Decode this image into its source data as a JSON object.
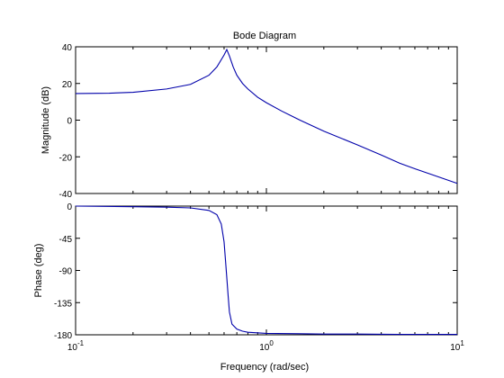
{
  "chart_data": {
    "type": "line",
    "title": "Bode Diagram",
    "xlabel": "Frequency  (rad/sec)",
    "x_scale": "log",
    "xlim": [
      0.1,
      10
    ],
    "x_ticks": [
      0.1,
      1,
      10
    ],
    "x_tick_labels": [
      {
        "base": "10",
        "exp": "-1"
      },
      {
        "base": "10",
        "exp": "0"
      },
      {
        "base": "10",
        "exp": "1"
      }
    ],
    "series_color": "#0000aa",
    "panels": [
      {
        "id": "magnitude",
        "ylabel": "Magnitude (dB)",
        "ylim": [
          -40,
          40
        ],
        "y_ticks": [
          40,
          20,
          0,
          -20,
          -40
        ],
        "y_tick_labels": [
          "40",
          "20",
          "0",
          "-20",
          "-40"
        ],
        "x": [
          0.1,
          0.15,
          0.2,
          0.3,
          0.4,
          0.5,
          0.55,
          0.6,
          0.62,
          0.64,
          0.67,
          0.7,
          0.75,
          0.8,
          0.9,
          1,
          1.2,
          1.5,
          2,
          3,
          4,
          5,
          6,
          8,
          10
        ],
        "y": [
          14.5,
          14.7,
          15.2,
          17,
          19.5,
          24.5,
          29,
          35.5,
          38.5,
          35,
          29,
          24.5,
          20,
          17,
          12.5,
          9.5,
          5,
          0,
          -6,
          -13.5,
          -19,
          -23.5,
          -26.5,
          -31,
          -34.5
        ]
      },
      {
        "id": "phase",
        "ylabel": "Phase (deg)",
        "ylim": [
          -180,
          0
        ],
        "y_ticks": [
          0,
          -45,
          -90,
          -135,
          -180
        ],
        "y_tick_labels": [
          "0",
          "-45",
          "-90",
          "-135",
          "-180"
        ],
        "x": [
          0.1,
          0.2,
          0.3,
          0.4,
          0.5,
          0.55,
          0.58,
          0.6,
          0.61,
          0.62,
          0.63,
          0.64,
          0.66,
          0.7,
          0.75,
          0.8,
          1,
          1.5,
          2,
          3,
          5,
          10
        ],
        "y": [
          0,
          -0.8,
          -1.5,
          -2.5,
          -6,
          -12,
          -25,
          -50,
          -75,
          -100,
          -125,
          -148,
          -165,
          -172,
          -175,
          -176.5,
          -178,
          -178.5,
          -179,
          -179,
          -179.5,
          -179.5
        ]
      }
    ]
  }
}
